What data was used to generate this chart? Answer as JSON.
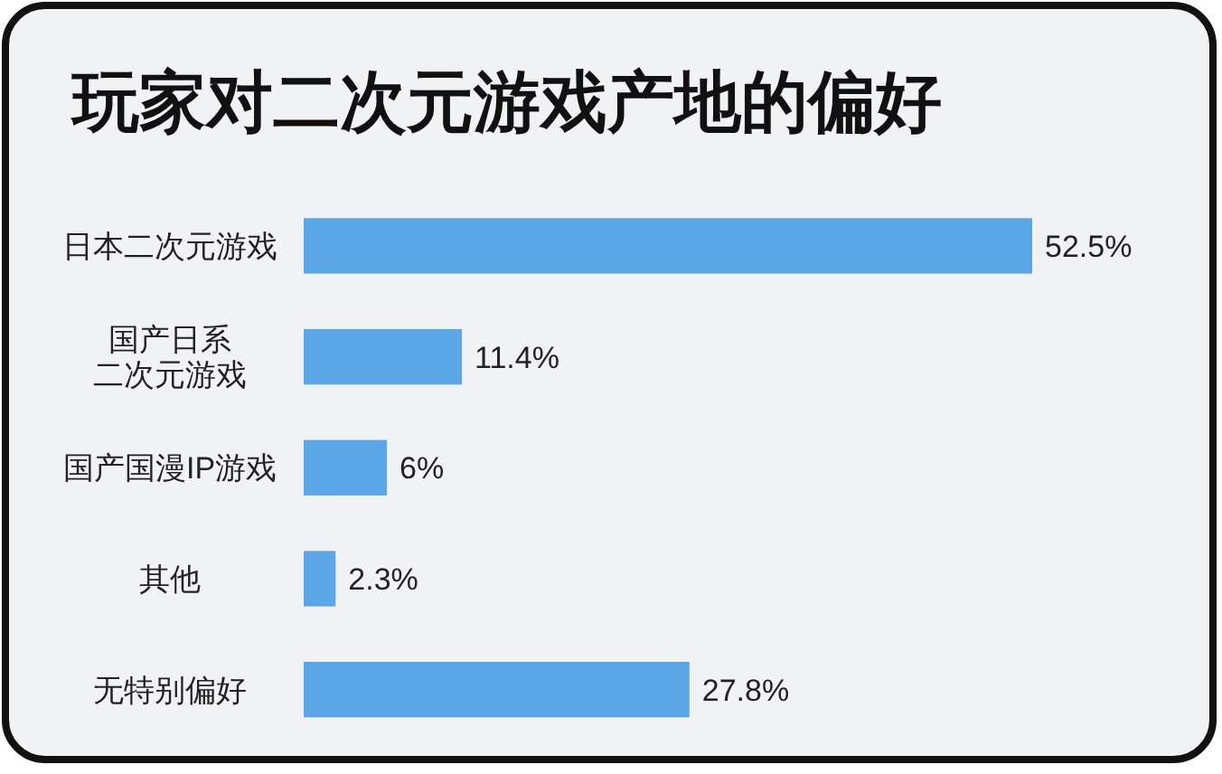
{
  "chart_data": {
    "type": "bar",
    "orientation": "horizontal",
    "title": "玩家对二次元游戏产地的偏好",
    "categories": [
      "日本二次元游戏",
      "国产日系二次元游戏",
      "国产国漫IP游戏",
      "其他",
      "无特别偏好"
    ],
    "values": [
      52.5,
      11.4,
      6,
      2.3,
      27.8
    ],
    "value_labels": [
      "52.5%",
      "11.4%",
      "6%",
      "2.3%",
      "27.8%"
    ],
    "color": "#5aa6e6",
    "tick_labels": "y"
  }
}
